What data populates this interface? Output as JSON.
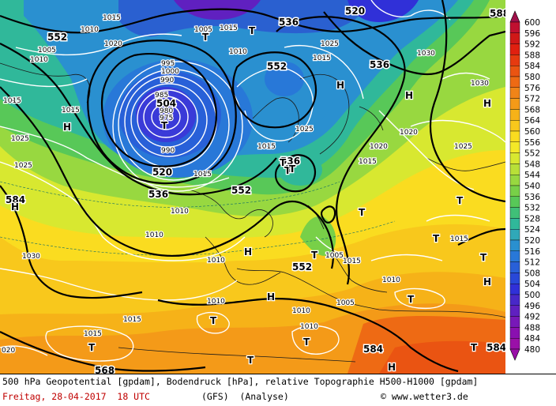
{
  "legend": {
    "levels": [
      600,
      596,
      592,
      588,
      584,
      580,
      576,
      572,
      568,
      564,
      560,
      556,
      552,
      548,
      544,
      540,
      536,
      532,
      528,
      524,
      520,
      516,
      512,
      508,
      504,
      500,
      496,
      492,
      488,
      484,
      480
    ],
    "colors": [
      "#a0104a",
      "#c01030",
      "#d01818",
      "#e02010",
      "#e63a10",
      "#ea5412",
      "#ee6a14",
      "#f08418",
      "#f49a18",
      "#f6b218",
      "#f8c81c",
      "#fadc20",
      "#f4e828",
      "#d8e830",
      "#b8e038",
      "#98d840",
      "#78d048",
      "#58c858",
      "#40c078",
      "#30b89a",
      "#30a8b8",
      "#2a90d0",
      "#2878d8",
      "#2860d8",
      "#2848d8",
      "#3030d8",
      "#4828c8",
      "#6020c0",
      "#7818b8",
      "#8a10b0",
      "#9a10a8"
    ]
  },
  "map_labels": {
    "geopotential": [
      "552",
      "536",
      "520",
      "504",
      "520",
      "536",
      "552",
      "552",
      "536",
      "552",
      "536",
      "584",
      "584",
      "584",
      "568",
      "588"
    ],
    "pressure": [
      "1015",
      "1005",
      "1010",
      "1010",
      "1020",
      "1015",
      "1025",
      "1015",
      "1025",
      "1030",
      "1030",
      "1025",
      "1020",
      "990",
      "985",
      "980",
      "975",
      "990",
      "1005",
      "995",
      "1000",
      "1025",
      "1015",
      "1010",
      "1015",
      "1015",
      "1025",
      "1030",
      "1020",
      "1015",
      "1015",
      "1010",
      "1010",
      "1010",
      "1005",
      "1015",
      "1015",
      "1010",
      "1010",
      "1005",
      "1010",
      "1015",
      "1010",
      "1015",
      "020"
    ],
    "highs": [
      "H",
      "H",
      "H",
      "H",
      "H",
      "H",
      "H",
      "H",
      "H"
    ],
    "lows": [
      "T",
      "T",
      "T",
      "T",
      "T",
      "T",
      "T",
      "T",
      "T",
      "T",
      "T",
      "T",
      "T",
      "T",
      "T",
      "T",
      "T",
      "T"
    ]
  },
  "footer": {
    "line1": "500 hPa Geopotential [gpdam], Bodendruck [hPa], relative Topographie H500-H1000 [gpdam]",
    "date": "Freitag, 28-04-2017  18 UTC",
    "model": "(GFS)  (Analyse)",
    "credit": "© www.wetter3.de"
  }
}
